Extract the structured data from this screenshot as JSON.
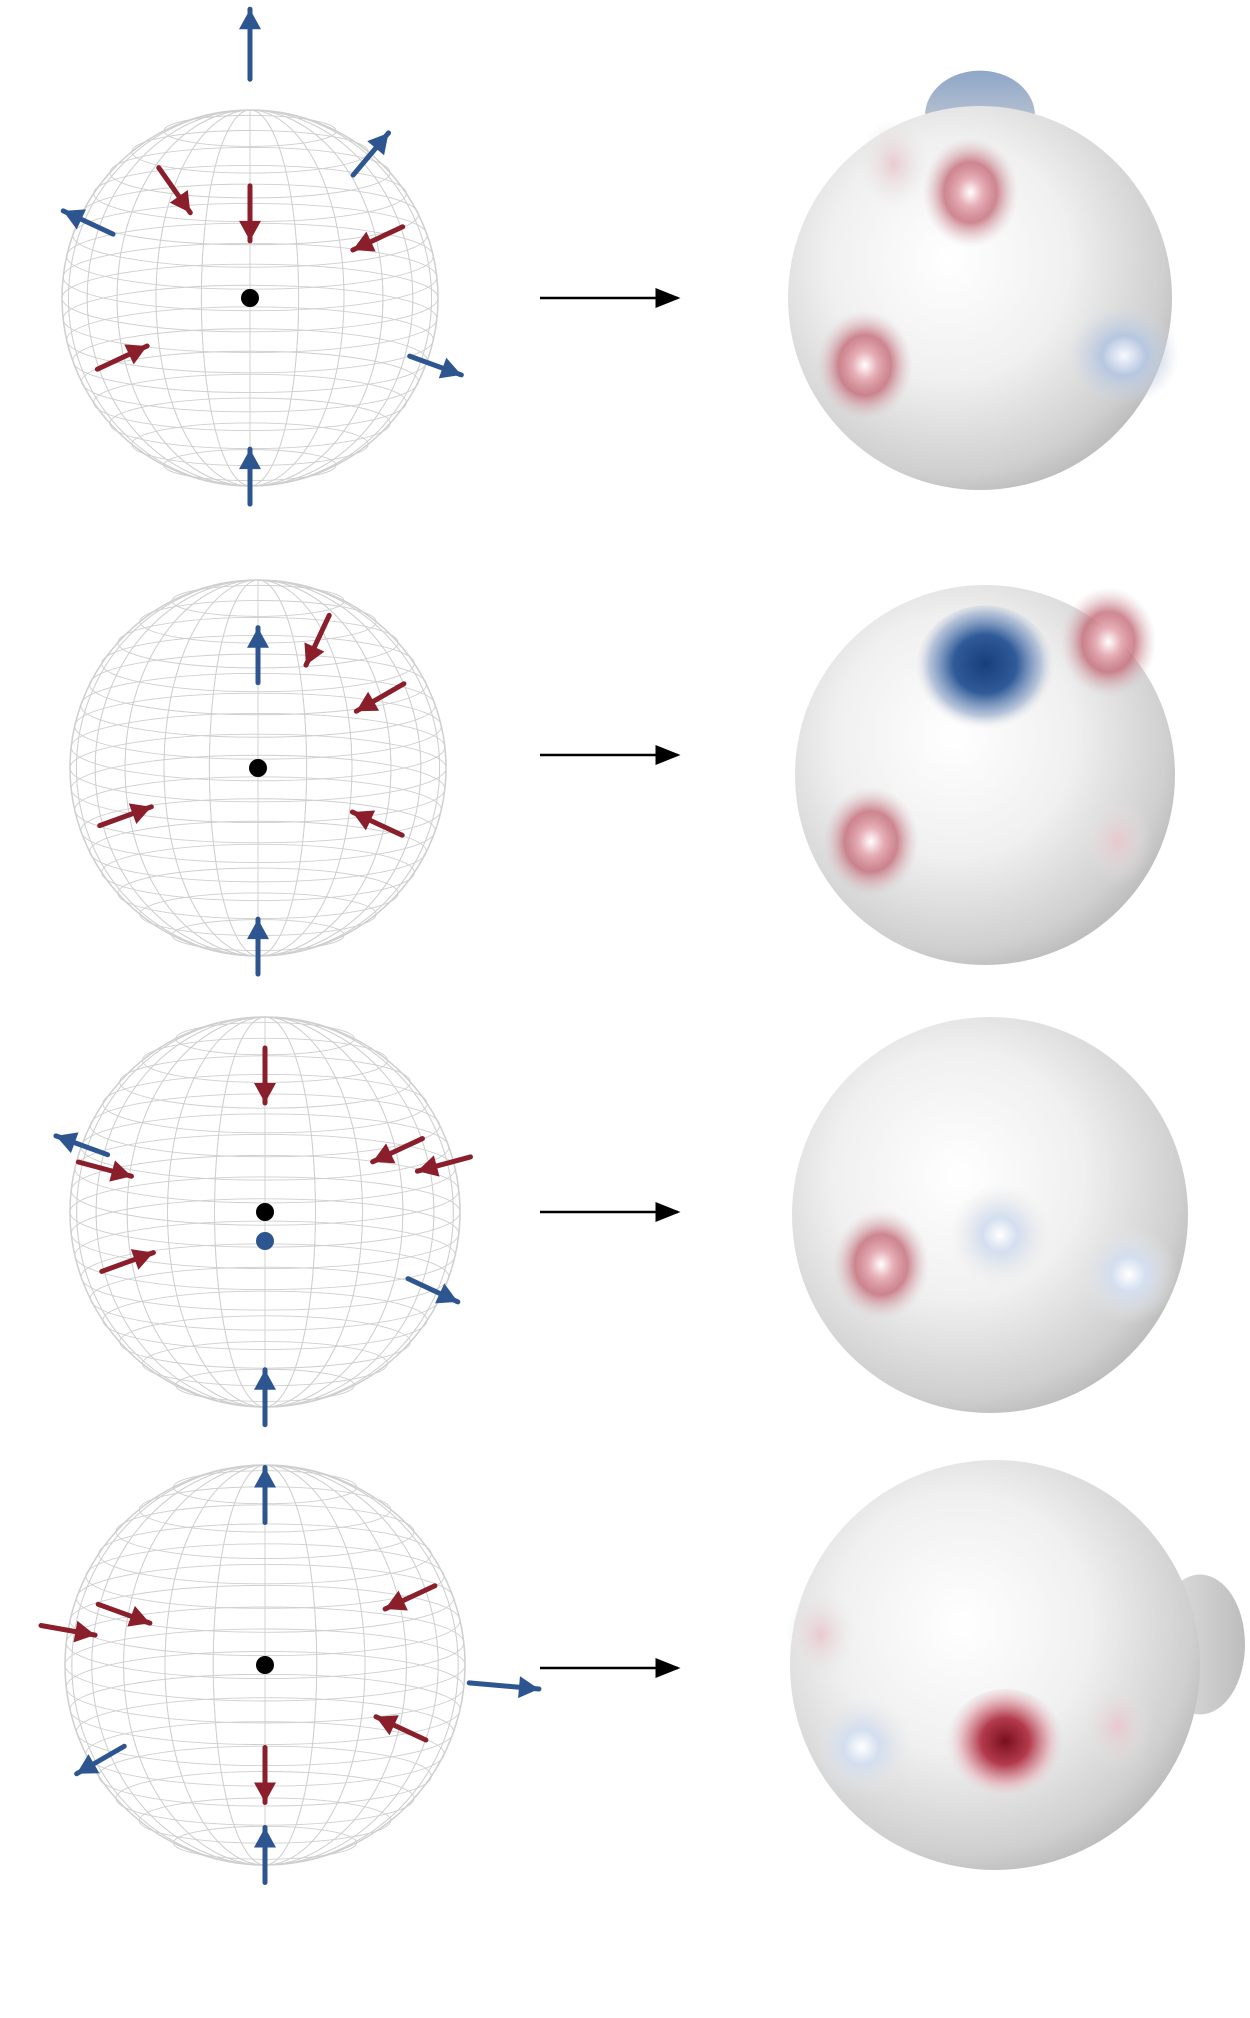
{
  "diagram": {
    "description_colors": {
      "positive_arrow": "#2d5590",
      "negative_arrow": "#8a1e2a",
      "center_dot": "#000000",
      "mesh_line": "#cfcfcf",
      "surface_base": "#d8d8d8",
      "surface_highlight": "#ffffff",
      "map_arrow": "#000000"
    },
    "rows": [
      {
        "id": "row-1",
        "extra_dot": false,
        "surface": {
          "bumps": [
            {
              "color": "blue",
              "at": [
                0,
                -0.95
              ],
              "type": "lobe"
            },
            {
              "color": "red",
              "at": [
                -0.05,
                -0.55
              ],
              "type": "dimple"
            },
            {
              "color": "red",
              "at": [
                -0.6,
                0.35
              ],
              "type": "dimple"
            },
            {
              "color": "blue",
              "at": [
                0.75,
                0.3
              ],
              "type": "dimple"
            },
            {
              "color": "red",
              "at": [
                -0.45,
                -0.7
              ],
              "type": "faint"
            }
          ]
        },
        "arrows": [
          {
            "type": "blue",
            "angle": -90,
            "r": 1.35,
            "inward": false
          },
          {
            "type": "blue",
            "angle": -50,
            "r": 1.0,
            "inward": false
          },
          {
            "type": "blue",
            "angle": 205,
            "r": 0.95,
            "inward": false
          },
          {
            "type": "blue",
            "angle": 20,
            "r": 1.05,
            "inward": false
          },
          {
            "type": "blue",
            "angle": 90,
            "r": 0.95,
            "inward": true
          },
          {
            "type": "red",
            "angle": 235,
            "r": 0.7,
            "inward": true
          },
          {
            "type": "red",
            "angle": -90,
            "r": 0.45,
            "inward": true
          },
          {
            "type": "red",
            "angle": -25,
            "r": 0.75,
            "inward": true
          },
          {
            "type": "red",
            "angle": 155,
            "r": 0.75,
            "inward": true
          }
        ]
      },
      {
        "id": "row-2",
        "extra_dot": false,
        "surface": {
          "bumps": [
            {
              "color": "blue",
              "at": [
                0,
                -0.55
              ],
              "type": "dimple-strong"
            },
            {
              "color": "red",
              "at": [
                0.65,
                -0.7
              ],
              "type": "dimple"
            },
            {
              "color": "red",
              "at": [
                -0.6,
                0.35
              ],
              "type": "dimple"
            },
            {
              "color": "red",
              "at": [
                0.7,
                0.35
              ],
              "type": "faint"
            }
          ]
        },
        "arrows": [
          {
            "type": "blue",
            "angle": -90,
            "r": 0.6,
            "inward": false
          },
          {
            "type": "blue",
            "angle": 90,
            "r": 0.95,
            "inward": true
          },
          {
            "type": "red",
            "angle": -65,
            "r": 0.75,
            "inward": true
          },
          {
            "type": "red",
            "angle": -30,
            "r": 0.75,
            "inward": true
          },
          {
            "type": "red",
            "angle": 160,
            "r": 0.75,
            "inward": true
          },
          {
            "type": "red",
            "angle": 25,
            "r": 0.7,
            "inward": true
          }
        ]
      },
      {
        "id": "row-3",
        "extra_dot": true,
        "surface": {
          "bumps": [
            {
              "color": "red",
              "at": [
                -0.55,
                0.25
              ],
              "type": "dimple"
            },
            {
              "color": "blue",
              "at": [
                0.05,
                0.1
              ],
              "type": "faint"
            },
            {
              "color": "blue",
              "at": [
                0.7,
                0.3
              ],
              "type": "faint"
            }
          ]
        },
        "arrows": [
          {
            "type": "red",
            "angle": -90,
            "r": 0.7,
            "inward": true
          },
          {
            "type": "blue",
            "angle": 200,
            "r": 1.0,
            "inward": false
          },
          {
            "type": "red",
            "angle": 195,
            "r": 0.85,
            "inward": true
          },
          {
            "type": "red",
            "angle": -25,
            "r": 0.75,
            "inward": true
          },
          {
            "type": "red",
            "angle": -15,
            "r": 0.95,
            "inward": true
          },
          {
            "type": "red",
            "angle": 160,
            "r": 0.75,
            "inward": true
          },
          {
            "type": "blue",
            "angle": 25,
            "r": 0.95,
            "inward": false
          },
          {
            "type": "blue",
            "angle": 90,
            "r": 0.95,
            "inward": true
          }
        ]
      },
      {
        "id": "row-4",
        "extra_dot": false,
        "surface": {
          "bumps": [
            {
              "color": "red",
              "at": [
                -0.85,
                -0.15
              ],
              "type": "faint"
            },
            {
              "color": "blue",
              "at": [
                -0.65,
                0.4
              ],
              "type": "faint"
            },
            {
              "color": "red",
              "at": [
                0.05,
                0.4
              ],
              "type": "dimple-strong"
            },
            {
              "color": "red",
              "at": [
                0.6,
                0.3
              ],
              "type": "faint"
            },
            {
              "color": "gray",
              "at": [
                1.0,
                -0.1
              ],
              "type": "lobe"
            }
          ]
        },
        "arrows": [
          {
            "type": "blue",
            "angle": -90,
            "r": 0.85,
            "inward": false
          },
          {
            "type": "red",
            "angle": 190,
            "r": 1.0,
            "inward": true
          },
          {
            "type": "red",
            "angle": 200,
            "r": 0.75,
            "inward": true
          },
          {
            "type": "red",
            "angle": -25,
            "r": 0.8,
            "inward": true
          },
          {
            "type": "blue",
            "angle": 5,
            "r": 1.2,
            "inward": false
          },
          {
            "type": "red",
            "angle": 90,
            "r": 0.55,
            "inward": false
          },
          {
            "type": "blue",
            "angle": 150,
            "r": 0.95,
            "inward": false
          },
          {
            "type": "red",
            "angle": 25,
            "r": 0.75,
            "inward": true
          },
          {
            "type": "blue",
            "angle": 90,
            "r": 0.95,
            "inward": true
          }
        ]
      }
    ]
  }
}
